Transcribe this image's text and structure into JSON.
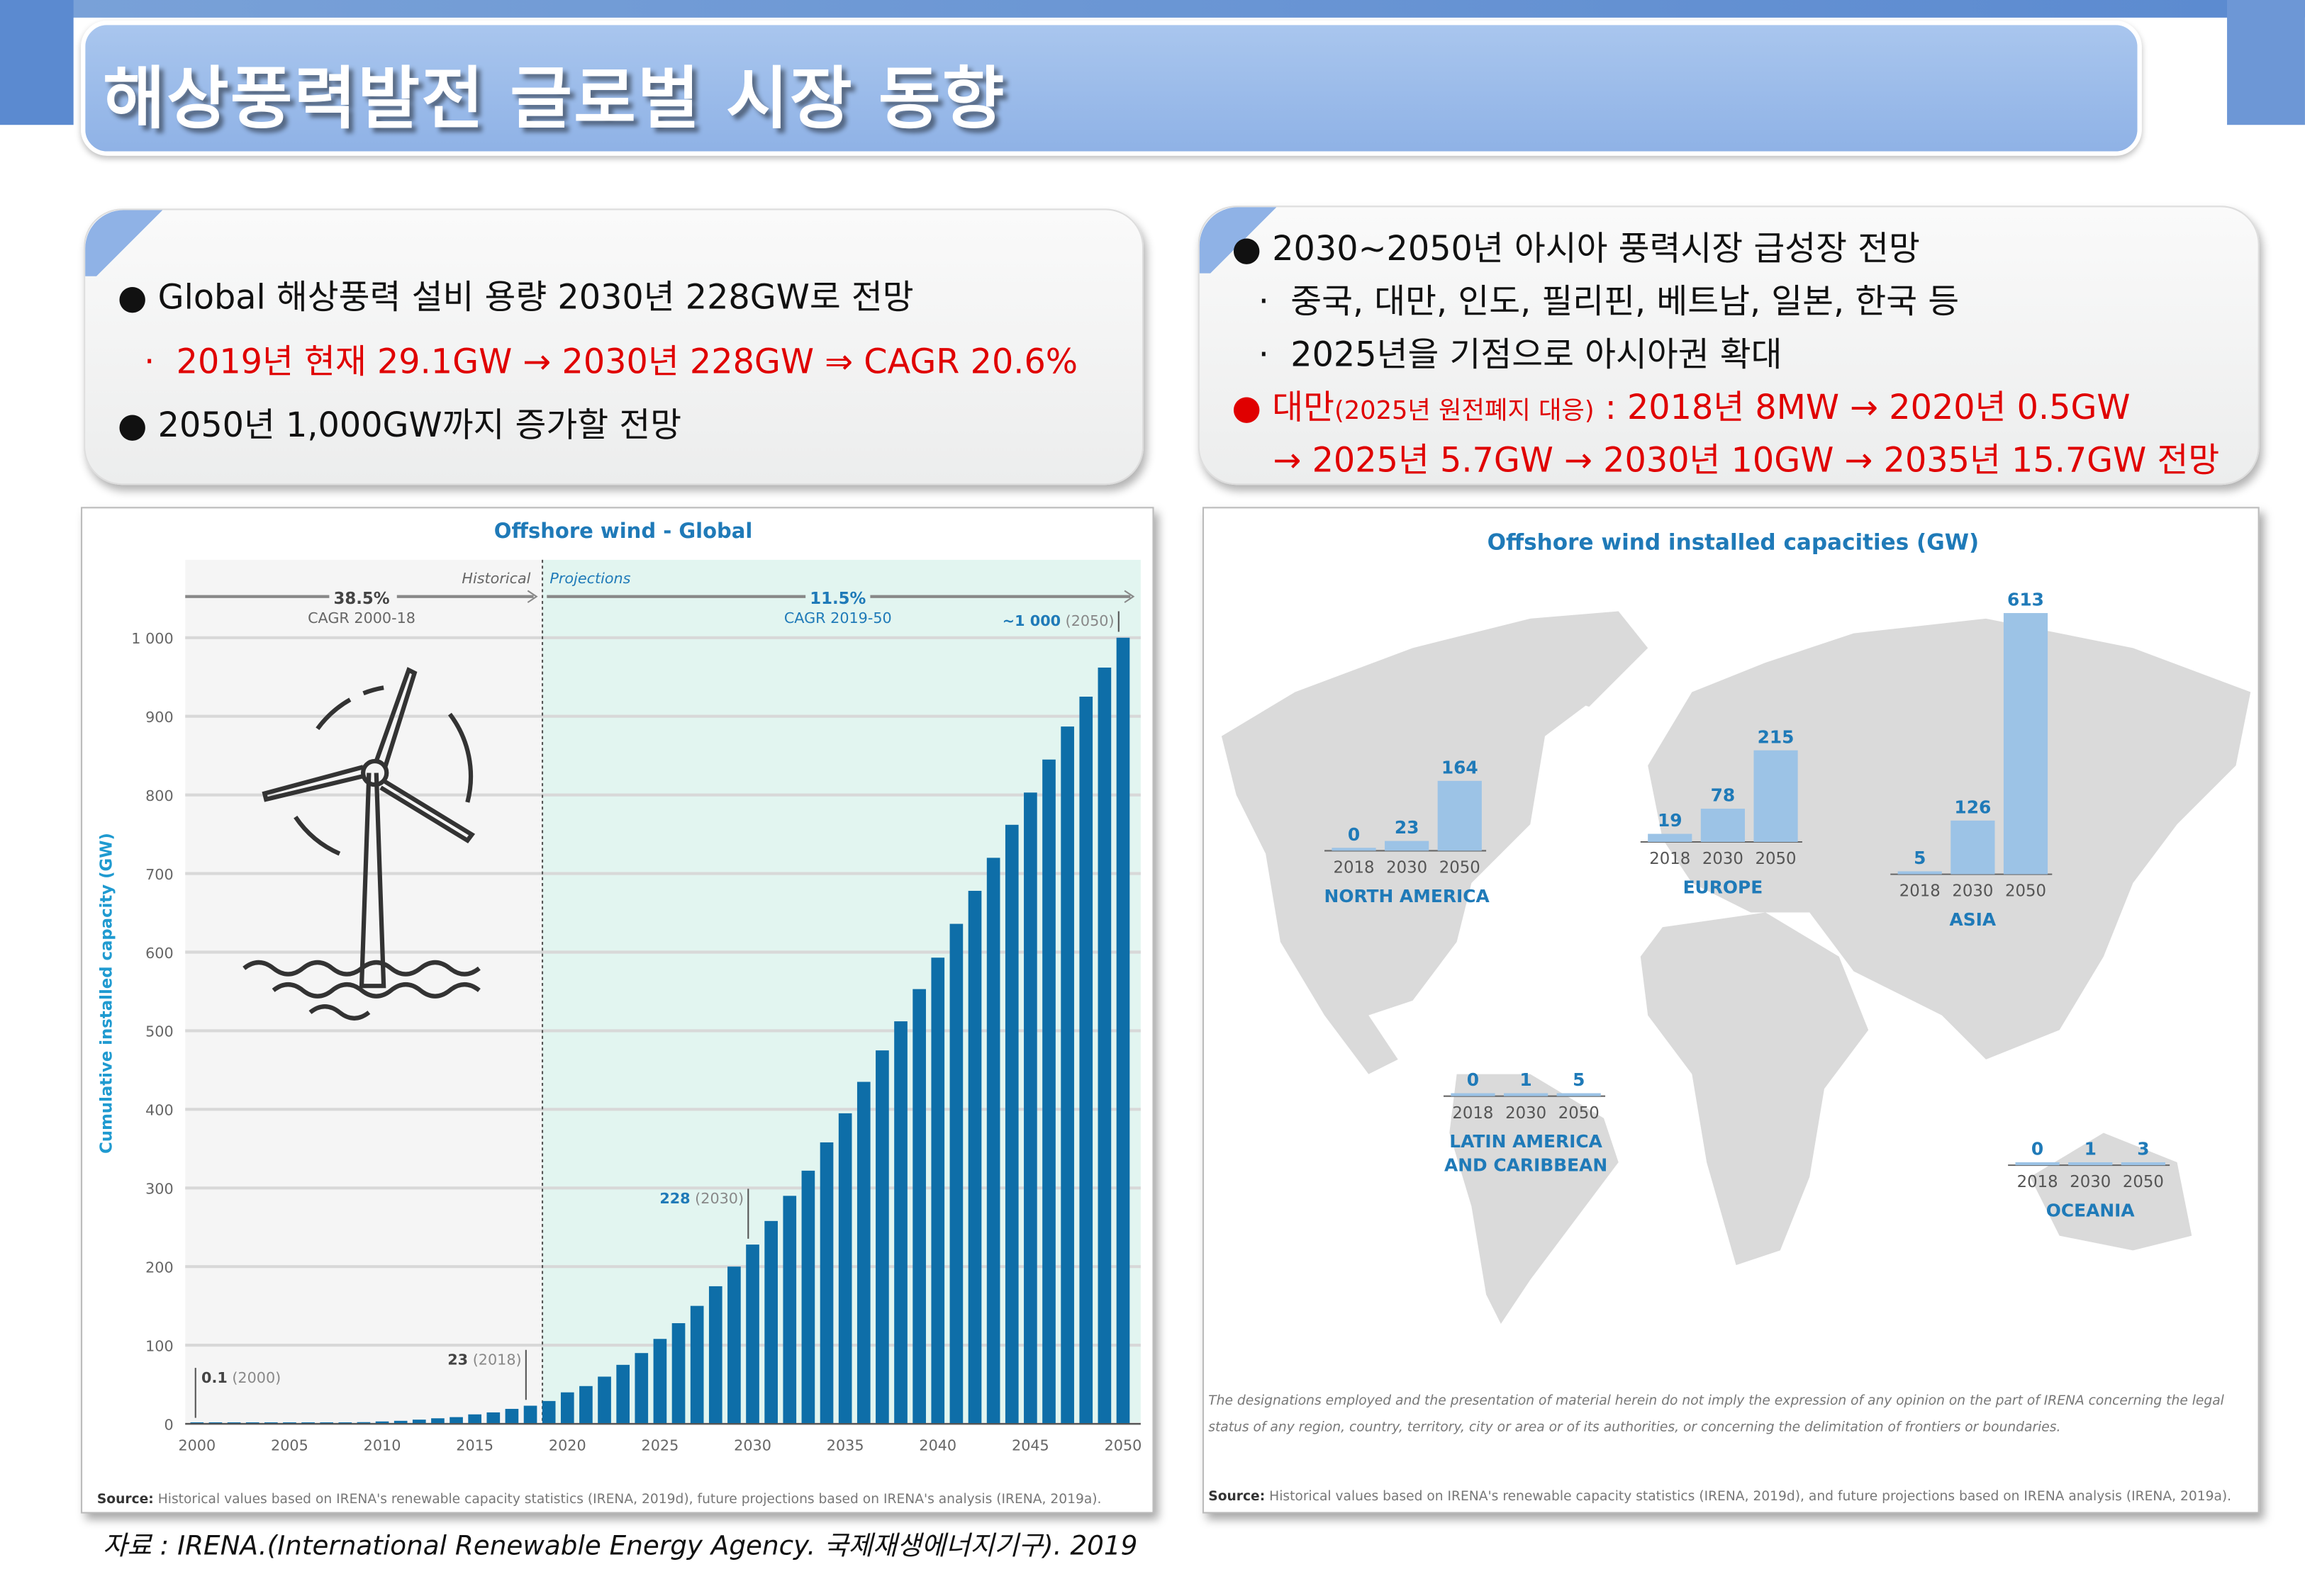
{
  "title": "해상풍력발전 글로벌 시장 동향",
  "left_box": {
    "b1": "Global 해상풍력 설비 용량 2030년 228GW로 전망",
    "b1_sub": "2019년 현재 29.1GW → 2030년 228GW ⇒ CAGR 20.6%",
    "b2": "2050년 1,000GW까지 증가할 전망"
  },
  "right_box": {
    "b1": "2030~2050년 아시아 풍력시장 급성장 전망",
    "s1": "중국, 대만, 인도, 필리핀, 베트남, 일본, 한국 등",
    "s2": "2025년을 기점으로 아시아권 확대",
    "r1_a": "대만",
    "r1_b": "(2025년 원전폐지 대응)",
    "r1_c": " : 2018년 8MW → 2020년 0.5GW",
    "r2": "→ 2025년 5.7GW → 2030년 10GW → 2035년 15.7GW 전망"
  },
  "bullet_glyph": "●",
  "sub_glyph": "·",
  "chart_data": [
    {
      "type": "bar",
      "title": "Offshore wind - Global",
      "ylabel": "Cumulative installed capacity (GW)",
      "ylim": [
        0,
        1000
      ],
      "yticks": [
        0,
        100,
        200,
        300,
        400,
        500,
        600,
        700,
        800,
        900,
        1000
      ],
      "ytick_labels": [
        "0",
        "100",
        "200",
        "300",
        "400",
        "500",
        "600",
        "700",
        "800",
        "900",
        "1 000"
      ],
      "xticks": [
        "2000",
        "2005",
        "2010",
        "2015",
        "2020",
        "2025",
        "2030",
        "2035",
        "2040",
        "2045",
        "2050"
      ],
      "x": [
        2000,
        2001,
        2002,
        2003,
        2004,
        2005,
        2006,
        2007,
        2008,
        2009,
        2010,
        2011,
        2012,
        2013,
        2014,
        2015,
        2016,
        2017,
        2018,
        2019,
        2020,
        2021,
        2022,
        2023,
        2024,
        2025,
        2026,
        2027,
        2028,
        2029,
        2030,
        2031,
        2032,
        2033,
        2034,
        2035,
        2036,
        2037,
        2038,
        2039,
        2040,
        2041,
        2042,
        2043,
        2044,
        2045,
        2046,
        2047,
        2048,
        2049,
        2050
      ],
      "values": [
        0.1,
        0.2,
        0.3,
        0.5,
        0.6,
        0.7,
        0.9,
        1.1,
        1.5,
        2.1,
        3,
        3.8,
        5.3,
        7,
        8.5,
        12,
        14.5,
        19,
        23,
        29,
        40,
        48,
        60,
        75,
        90,
        108,
        128,
        150,
        175,
        200,
        228,
        258,
        290,
        322,
        358,
        395,
        435,
        475,
        512,
        553,
        593,
        636,
        678,
        720,
        762,
        803,
        845,
        887,
        925,
        962,
        1000
      ],
      "grid": true,
      "color": "#0e6ea8",
      "historical_label": "Historical",
      "projections_label": "Projections",
      "cagr_hist": {
        "value": "38.5%",
        "label": "CAGR 2000-18"
      },
      "cagr_proj": {
        "value": "11.5%",
        "label": "CAGR 2019-50"
      },
      "annotations": [
        {
          "value": "0.1",
          "year": "(2000)"
        },
        {
          "value": "23",
          "year": "(2018)"
        },
        {
          "value": "228",
          "year": "(2030)"
        },
        {
          "value": "~1 000",
          "year": "(2050)"
        }
      ],
      "source_label": "Source:",
      "source": "Historical values based on IRENA's renewable capacity statistics (IRENA, 2019d), future projections based on IRENA's analysis (IRENA, 2019a)."
    },
    {
      "type": "bar",
      "title": "Offshore wind installed capacities (GW)",
      "categories": [
        "2018",
        "2030",
        "2050"
      ],
      "color": "#9cc3e6",
      "regions": [
        {
          "name": [
            "NORTH AMERICA"
          ],
          "values": [
            0,
            23,
            164
          ]
        },
        {
          "name": [
            "EUROPE"
          ],
          "values": [
            19,
            78,
            215
          ]
        },
        {
          "name": [
            "ASIA"
          ],
          "values": [
            5,
            126,
            613
          ]
        },
        {
          "name": [
            "LATIN AMERICA",
            "AND CARIBBEAN"
          ],
          "values": [
            0,
            1,
            5
          ]
        },
        {
          "name": [
            "OCEANIA"
          ],
          "values": [
            0,
            1,
            3
          ]
        }
      ],
      "disclaimer_1": "The designations employed and the presentation of material herein do not imply the expression of any opinion on the part of IRENA concerning the legal",
      "disclaimer_2": "status of any region, country, territory, city or area or of its authorities, or concerning the delimitation of frontiers or boundaries.",
      "source_label": "Source:",
      "source": "Historical values based on IRENA's renewable capacity statistics (IRENA, 2019d), and future projections based on IRENA analysis (IRENA, 2019a)."
    }
  ],
  "footnote": "자료 : IRENA.(International Renewable Energy Agency. 국제재생에너지기구). 2019"
}
